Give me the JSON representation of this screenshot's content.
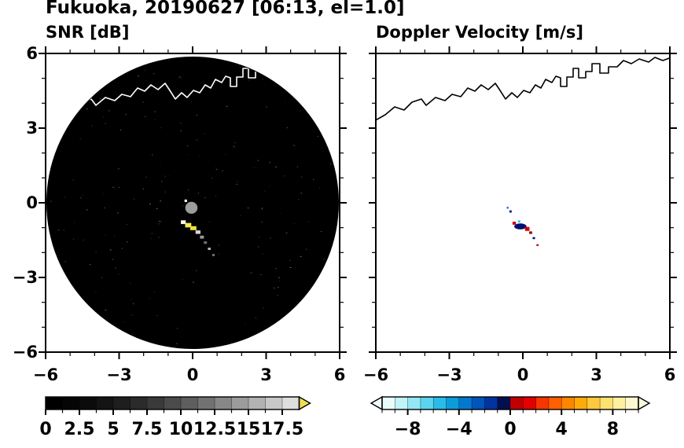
{
  "title": "Fukuoka, 20190627 [06:13, el=1.0]",
  "panels": {
    "snr": {
      "title": "SNR [dB]"
    },
    "doppler": {
      "title": "Doppler Velocity [m/s]"
    }
  },
  "chart_data": [
    {
      "type": "heatmap",
      "name": "snr",
      "title": "SNR [dB]",
      "xlabel": "",
      "ylabel": "",
      "xlim": [
        -6,
        6
      ],
      "ylim": [
        -6,
        6
      ],
      "xticks": [
        -6,
        -3,
        0,
        3,
        6
      ],
      "yticks": [
        6,
        3,
        0,
        -3,
        -6
      ],
      "minor_tick_interval": 1,
      "grid": false,
      "background": "#ffffff",
      "radar_disc": {
        "center_x": 0,
        "center_y": 0,
        "radius": 6,
        "fill": "#000000",
        "note": "radar scan disc at noise floor ~0 dB"
      },
      "coastline_color": "#ffffff",
      "colorbar": {
        "range": [
          0,
          18.75
        ],
        "ticks": [
          0,
          2.5,
          5,
          7.5,
          10,
          12.5,
          15,
          17.5
        ],
        "segment_colors": [
          "#000000",
          "#050505",
          "#0b0b0b",
          "#131313",
          "#1e1e1e",
          "#2b2b2b",
          "#3a3a3a",
          "#4b4b4b",
          "#5e5e5e",
          "#727272",
          "#878787",
          "#9c9c9c",
          "#b2b2b2",
          "#c8c8c8",
          "#dedede"
        ],
        "over_arrow_color": "#f0de52"
      },
      "echoes": [
        {
          "x": -0.05,
          "y": -0.2,
          "w": 0.5,
          "h": 0.48,
          "color": "#9c9c9c",
          "shape": "ellipse"
        },
        {
          "x": -0.28,
          "y": 0.08,
          "w": 0.1,
          "h": 0.1,
          "color": "#ffffff",
          "shape": "rect"
        },
        {
          "x": -0.38,
          "y": -0.78,
          "w": 0.2,
          "h": 0.15,
          "color": "#f4f4f4",
          "shape": "rect"
        },
        {
          "x": -0.18,
          "y": -0.9,
          "w": 0.25,
          "h": 0.18,
          "color": "#f5ea5a",
          "shape": "rect"
        },
        {
          "x": 0.03,
          "y": -1.02,
          "w": 0.25,
          "h": 0.16,
          "color": "#efe23e",
          "shape": "rect"
        },
        {
          "x": 0.22,
          "y": -1.18,
          "w": 0.2,
          "h": 0.14,
          "color": "#d8d8d8",
          "shape": "rect"
        },
        {
          "x": 0.38,
          "y": -1.38,
          "w": 0.16,
          "h": 0.12,
          "color": "#9a9a9a",
          "shape": "rect"
        },
        {
          "x": 0.52,
          "y": -1.6,
          "w": 0.13,
          "h": 0.1,
          "color": "#6f6f6f",
          "shape": "rect"
        },
        {
          "x": 0.68,
          "y": -1.85,
          "w": 0.12,
          "h": 0.09,
          "color": "#b8b8b8",
          "shape": "rect"
        },
        {
          "x": 0.85,
          "y": -2.1,
          "w": 0.1,
          "h": 0.08,
          "color": "#7c7c7c",
          "shape": "rect"
        }
      ]
    },
    {
      "type": "heatmap",
      "name": "doppler_velocity",
      "title": "Doppler Velocity [m/s]",
      "xlabel": "",
      "ylabel": "",
      "xlim": [
        -6,
        6
      ],
      "ylim": [
        -6,
        6
      ],
      "xticks": [
        -6,
        -3,
        0,
        3,
        6
      ],
      "yticks": [
        6,
        3,
        0,
        -3,
        -6
      ],
      "minor_tick_interval": 1,
      "grid": false,
      "background": "#ffffff",
      "coastline_color": "#000000",
      "colorbar": {
        "range": [
          -10,
          10
        ],
        "ticks": [
          -8,
          -4,
          0,
          4,
          8
        ],
        "segment_colors": [
          "#e8fcfc",
          "#c0f4f8",
          "#92e8f4",
          "#5cd4ee",
          "#2abce8",
          "#0c9cdc",
          "#0478ce",
          "#0255ba",
          "#0234a0",
          "#021050",
          "#c00000",
          "#e40000",
          "#f63500",
          "#fc6000",
          "#fd8600",
          "#feab0a",
          "#fec93c",
          "#fee270",
          "#fef0a0",
          "#fdf8ce"
        ],
        "under_arrow_color": "#eefcfc",
        "over_arrow_color": "#fdfae2"
      },
      "echoes": [
        {
          "x": -0.62,
          "y": -0.2,
          "w": 0.07,
          "h": 0.07,
          "color": "#0255ba",
          "shape": "rect"
        },
        {
          "x": -0.5,
          "y": -0.35,
          "w": 0.09,
          "h": 0.09,
          "color": "#021a7e",
          "shape": "rect"
        },
        {
          "x": -0.15,
          "y": -0.75,
          "w": 0.1,
          "h": 0.08,
          "color": "#2abce8",
          "shape": "rect"
        },
        {
          "x": -0.35,
          "y": -0.82,
          "w": 0.14,
          "h": 0.12,
          "color": "#c80000",
          "shape": "rect"
        },
        {
          "x": -0.1,
          "y": -0.95,
          "w": 0.5,
          "h": 0.24,
          "color": "#021070",
          "shape": "ellipse"
        },
        {
          "x": 0.18,
          "y": -1.05,
          "w": 0.18,
          "h": 0.16,
          "color": "#d40000",
          "shape": "rect"
        },
        {
          "x": 0.32,
          "y": -1.2,
          "w": 0.12,
          "h": 0.1,
          "color": "#8f0000",
          "shape": "rect"
        },
        {
          "x": 0.45,
          "y": -1.42,
          "w": 0.1,
          "h": 0.08,
          "color": "#021a7e",
          "shape": "rect"
        },
        {
          "x": 0.6,
          "y": -1.7,
          "w": 0.09,
          "h": 0.07,
          "color": "#c80000",
          "shape": "rect"
        }
      ]
    }
  ]
}
